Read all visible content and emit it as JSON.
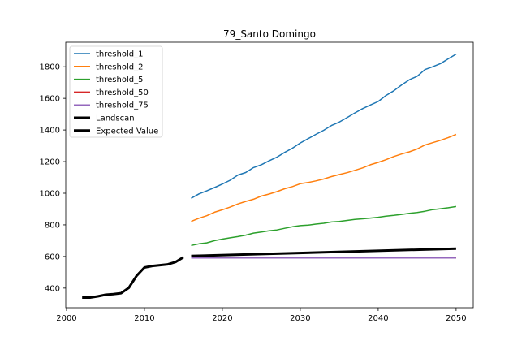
{
  "chart_data": {
    "type": "line",
    "title": "79_Santo Domingo",
    "xlabel": "",
    "ylabel": "",
    "xlim": [
      1999.9,
      2052.2
    ],
    "ylim": [
      276,
      1955
    ],
    "xticks": [
      2000,
      2010,
      2020,
      2030,
      2040,
      2050
    ],
    "yticks": [
      400,
      600,
      800,
      1000,
      1200,
      1400,
      1600,
      1800
    ],
    "grid": false,
    "legend_position": "top-left",
    "series": [
      {
        "name": "threshold_1",
        "color": "#1f77b4",
        "width": 1.5,
        "x": [
          2016,
          2017,
          2018,
          2019,
          2020,
          2021,
          2022,
          2023,
          2024,
          2025,
          2026,
          2027,
          2028,
          2029,
          2030,
          2031,
          2032,
          2033,
          2034,
          2035,
          2036,
          2037,
          2038,
          2039,
          2040,
          2041,
          2042,
          2043,
          2044,
          2045,
          2046,
          2047,
          2048,
          2049,
          2050
        ],
        "y": [
          968,
          996,
          1015,
          1036,
          1058,
          1082,
          1115,
          1131,
          1162,
          1180,
          1205,
          1228,
          1258,
          1285,
          1318,
          1345,
          1372,
          1398,
          1428,
          1450,
          1478,
          1508,
          1535,
          1558,
          1580,
          1618,
          1648,
          1685,
          1718,
          1740,
          1782,
          1800,
          1820,
          1850,
          1880
        ]
      },
      {
        "name": "threshold_2",
        "color": "#ff7f0e",
        "width": 1.5,
        "x": [
          2016,
          2017,
          2018,
          2019,
          2020,
          2021,
          2022,
          2023,
          2024,
          2025,
          2026,
          2027,
          2028,
          2029,
          2030,
          2031,
          2032,
          2033,
          2034,
          2035,
          2036,
          2037,
          2038,
          2039,
          2040,
          2041,
          2042,
          2043,
          2044,
          2045,
          2046,
          2047,
          2048,
          2049,
          2050
        ],
        "y": [
          822,
          842,
          858,
          880,
          895,
          912,
          932,
          948,
          962,
          982,
          995,
          1010,
          1028,
          1042,
          1060,
          1068,
          1078,
          1090,
          1105,
          1118,
          1130,
          1145,
          1160,
          1180,
          1195,
          1212,
          1232,
          1248,
          1262,
          1280,
          1305,
          1320,
          1335,
          1352,
          1372
        ]
      },
      {
        "name": "threshold_5",
        "color": "#2ca02c",
        "width": 1.5,
        "x": [
          2016,
          2017,
          2018,
          2019,
          2020,
          2021,
          2022,
          2023,
          2024,
          2025,
          2026,
          2027,
          2028,
          2029,
          2030,
          2031,
          2032,
          2033,
          2034,
          2035,
          2036,
          2037,
          2038,
          2039,
          2040,
          2041,
          2042,
          2043,
          2044,
          2045,
          2046,
          2047,
          2048,
          2049,
          2050
        ],
        "y": [
          670,
          680,
          686,
          700,
          710,
          718,
          726,
          735,
          748,
          755,
          762,
          768,
          778,
          788,
          795,
          798,
          805,
          810,
          818,
          822,
          828,
          834,
          838,
          843,
          848,
          855,
          860,
          866,
          873,
          878,
          886,
          896,
          902,
          908,
          916
        ]
      },
      {
        "name": "threshold_50",
        "color": "#d62728",
        "width": 1.5,
        "x": [
          2016,
          2050
        ],
        "y": [
          591,
          591
        ]
      },
      {
        "name": "threshold_75",
        "color": "#9467bd",
        "width": 1.5,
        "x": [
          2016,
          2050
        ],
        "y": [
          591,
          591
        ]
      },
      {
        "name": "Landscan",
        "color": "#000000",
        "width": 3,
        "x": [
          2002,
          2003,
          2004,
          2005,
          2006,
          2007,
          2008,
          2009,
          2010,
          2011,
          2012,
          2013,
          2014,
          2015
        ],
        "y": [
          340,
          340,
          348,
          358,
          362,
          368,
          402,
          478,
          530,
          540,
          545,
          550,
          565,
          595
        ]
      },
      {
        "name": "Expected Value",
        "color": "#000000",
        "width": 3,
        "x": [
          2016,
          2050
        ],
        "y": [
          603,
          650
        ]
      }
    ]
  }
}
